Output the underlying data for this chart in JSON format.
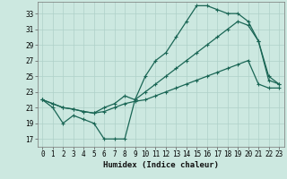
{
  "xlabel": "Humidex (Indice chaleur)",
  "bg_color": "#cce8e0",
  "grid_color": "#aed0c8",
  "line_color": "#1a6655",
  "xlim": [
    -0.5,
    23.5
  ],
  "ylim": [
    16,
    34.5
  ],
  "xticks": [
    0,
    1,
    2,
    3,
    4,
    5,
    6,
    7,
    8,
    9,
    10,
    11,
    12,
    13,
    14,
    15,
    16,
    17,
    18,
    19,
    20,
    21,
    22,
    23
  ],
  "yticks": [
    17,
    19,
    21,
    23,
    25,
    27,
    29,
    31,
    33
  ],
  "curve1_x": [
    0,
    1,
    2,
    3,
    4,
    5,
    6,
    7,
    8,
    9,
    10,
    11,
    12,
    13,
    14,
    15,
    16,
    17,
    18,
    19,
    20,
    21,
    22,
    23
  ],
  "curve1_y": [
    22,
    21,
    19,
    20,
    19.5,
    19,
    17,
    17,
    17,
    22,
    25,
    27,
    28,
    30,
    32,
    34,
    34,
    33.5,
    33,
    33,
    32,
    29.5,
    24.5,
    24
  ],
  "curve2_x": [
    0,
    1,
    2,
    3,
    4,
    5,
    6,
    7,
    8,
    9,
    10,
    11,
    12,
    13,
    14,
    15,
    16,
    17,
    18,
    19,
    20,
    21,
    22,
    23
  ],
  "curve2_y": [
    22,
    21.5,
    21,
    20.8,
    20.5,
    20.3,
    20.5,
    21,
    21.5,
    21.8,
    22,
    22.5,
    23,
    23.5,
    24,
    24.5,
    25,
    25.5,
    26,
    26.5,
    27,
    24,
    23.5,
    23.5
  ],
  "curve3_x": [
    0,
    1,
    2,
    3,
    4,
    5,
    6,
    7,
    8,
    9,
    10,
    11,
    12,
    13,
    14,
    15,
    16,
    17,
    18,
    19,
    20,
    21,
    22,
    23
  ],
  "curve3_y": [
    22,
    21.5,
    21,
    20.8,
    20.5,
    20.3,
    21,
    21.5,
    22.5,
    22,
    23,
    24,
    25,
    26,
    27,
    28,
    29,
    30,
    31,
    32,
    31.5,
    29.5,
    25,
    24
  ]
}
